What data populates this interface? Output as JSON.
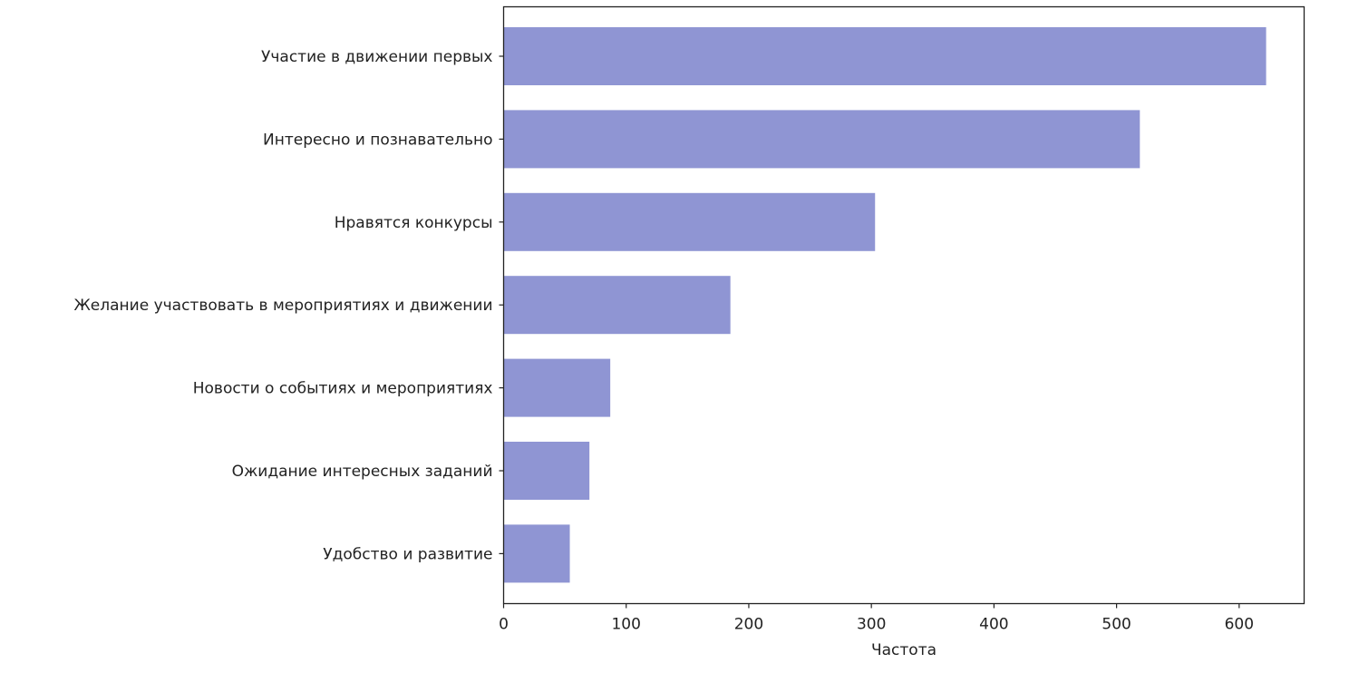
{
  "chart_data": {
    "type": "bar",
    "orientation": "horizontal",
    "title": "",
    "xlabel": "Частота",
    "ylabel": "",
    "categories": [
      "Участие в движении первых",
      "Интересно и познавательно",
      "Нравятся конкурсы",
      "Желание участвовать в мероприятиях и движении",
      "Новости о событиях и мероприятиях",
      "Ожидание интересных заданий",
      "Удобство и развитие"
    ],
    "values": [
      622,
      519,
      303,
      185,
      87,
      70,
      54
    ],
    "xlim": [
      0,
      653
    ],
    "xticks": [
      0,
      100,
      200,
      300,
      400,
      500,
      600
    ],
    "grid": false,
    "bar_color": "#8f95d3"
  }
}
